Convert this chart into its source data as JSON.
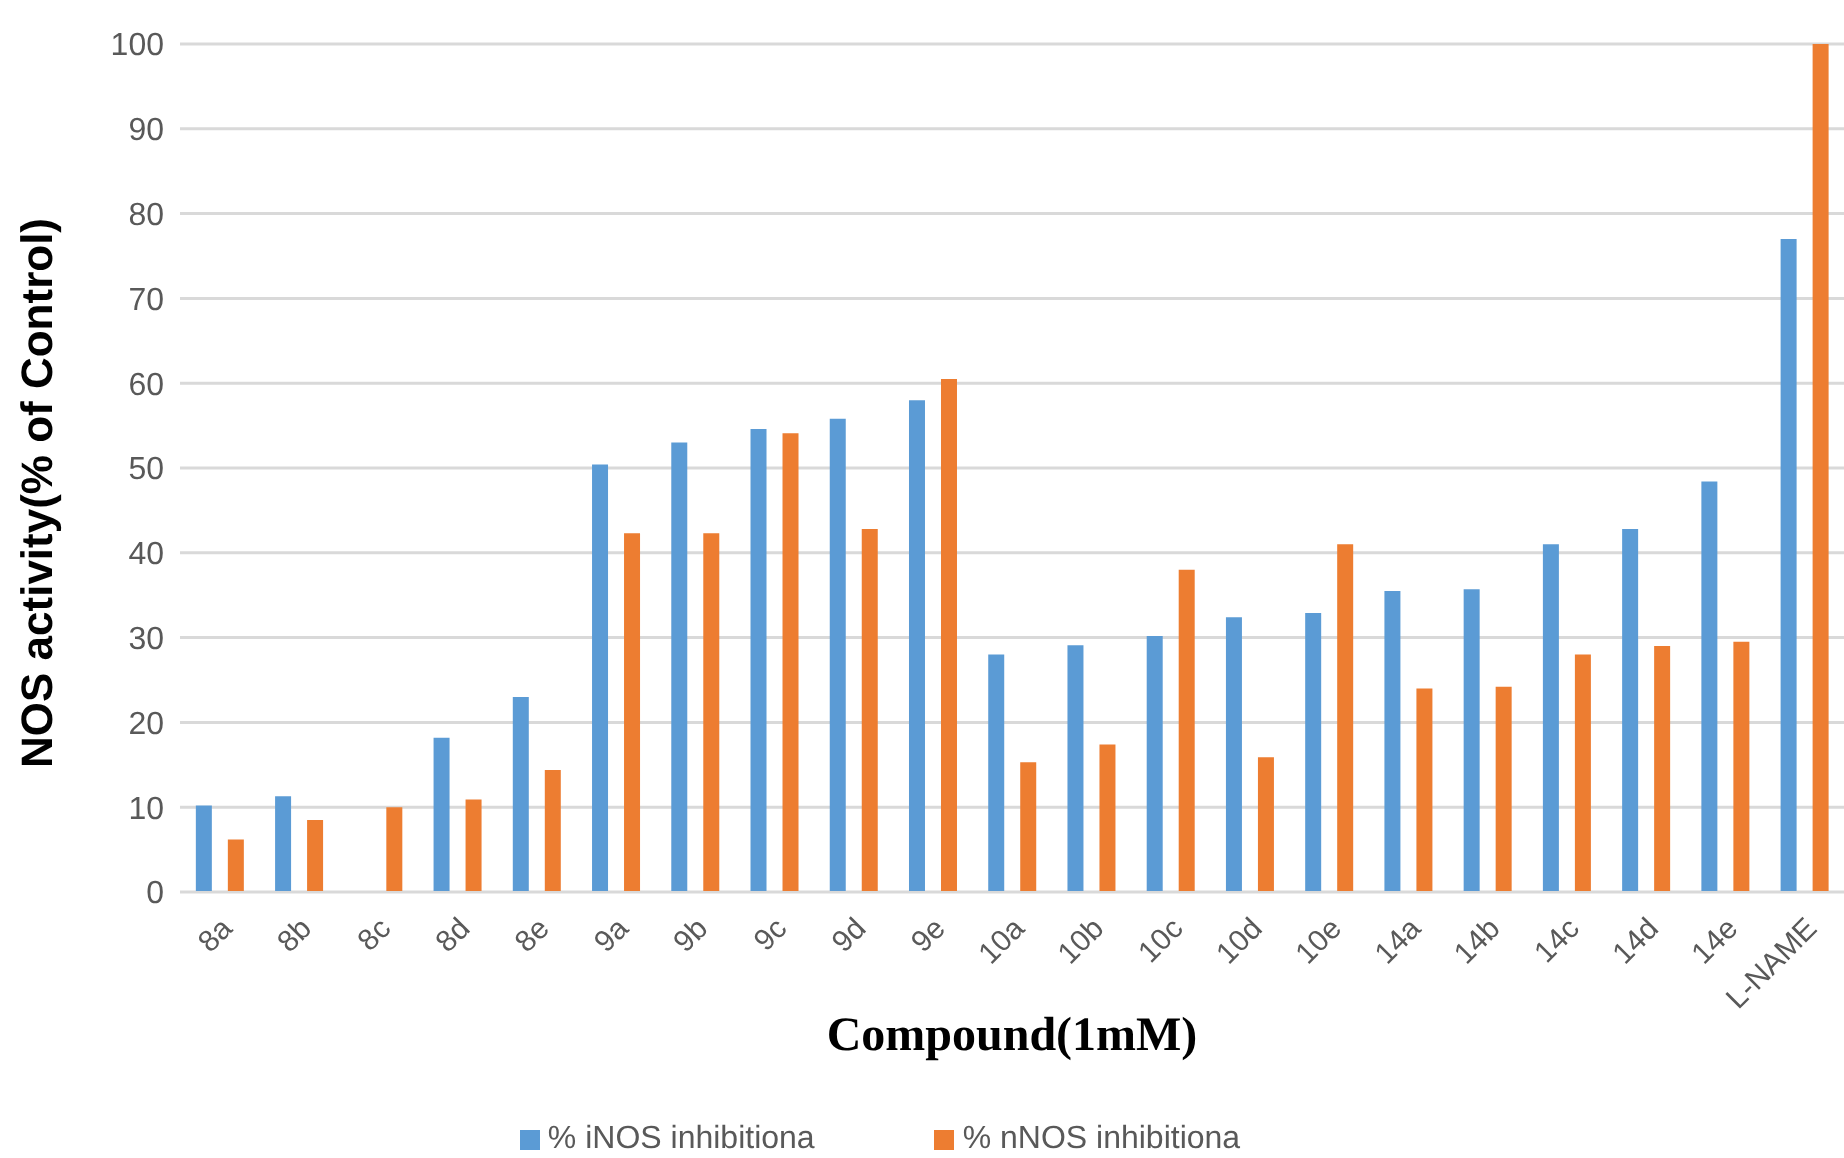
{
  "chart_data": {
    "type": "bar",
    "xlabel": "Compound(1mM)",
    "ylabel": "NOS activity(% of Control)",
    "categories": [
      "8a",
      "8b",
      "8c",
      "8d",
      "8e",
      "9a",
      "9b",
      "9c",
      "9d",
      "9e",
      "10a",
      "10b",
      "10c",
      "10d",
      "10e",
      "14a",
      "14b",
      "14c",
      "14d",
      "14e",
      "L-NAME"
    ],
    "series": [
      {
        "name": "% iNOS inhibitiona",
        "color": "#5b9bd5",
        "values": [
          10.2,
          11.3,
          null,
          18.2,
          23,
          50.4,
          53,
          54.6,
          55.8,
          58,
          28,
          29.1,
          30.2,
          32.4,
          32.9,
          35.5,
          35.7,
          41,
          42.8,
          48.4,
          77
        ]
      },
      {
        "name": "% nNOS inhibitiona",
        "color": "#ed7d31",
        "values": [
          6.2,
          8.5,
          10,
          10.9,
          14.4,
          42.3,
          42.3,
          54.1,
          42.8,
          60.5,
          15.3,
          17.4,
          38,
          15.9,
          41,
          24,
          24.2,
          28,
          29,
          29.5,
          100
        ]
      }
    ],
    "ylim": [
      0,
      100
    ],
    "yticks": [
      0,
      10,
      20,
      30,
      40,
      50,
      60,
      70,
      80,
      90,
      100
    ],
    "grid": "y",
    "legend": "bottom"
  }
}
